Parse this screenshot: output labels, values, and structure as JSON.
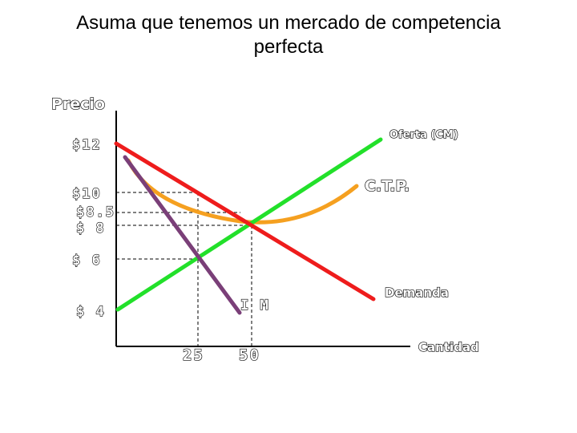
{
  "title_line1": "Asuma que tenemos un mercado de competencia",
  "title_line2": "perfecta",
  "axis": {
    "y_label": "Precio",
    "x_label": "Cantidad"
  },
  "price_ticks": [
    "$12",
    "$10",
    "$8.5",
    "$ 8",
    "$ 6",
    "$ 4"
  ],
  "quantity_ticks": [
    "25",
    "50"
  ],
  "curves": {
    "supply": {
      "label": "Oferta (CM)",
      "color": "#22e02a"
    },
    "demand": {
      "label": "Demanda",
      "color": "#ee1c1c"
    },
    "ctp": {
      "label": "C.T.P.",
      "color": "#f5a020"
    },
    "im": {
      "label": "I M",
      "color": "#7a3f78"
    }
  }
}
